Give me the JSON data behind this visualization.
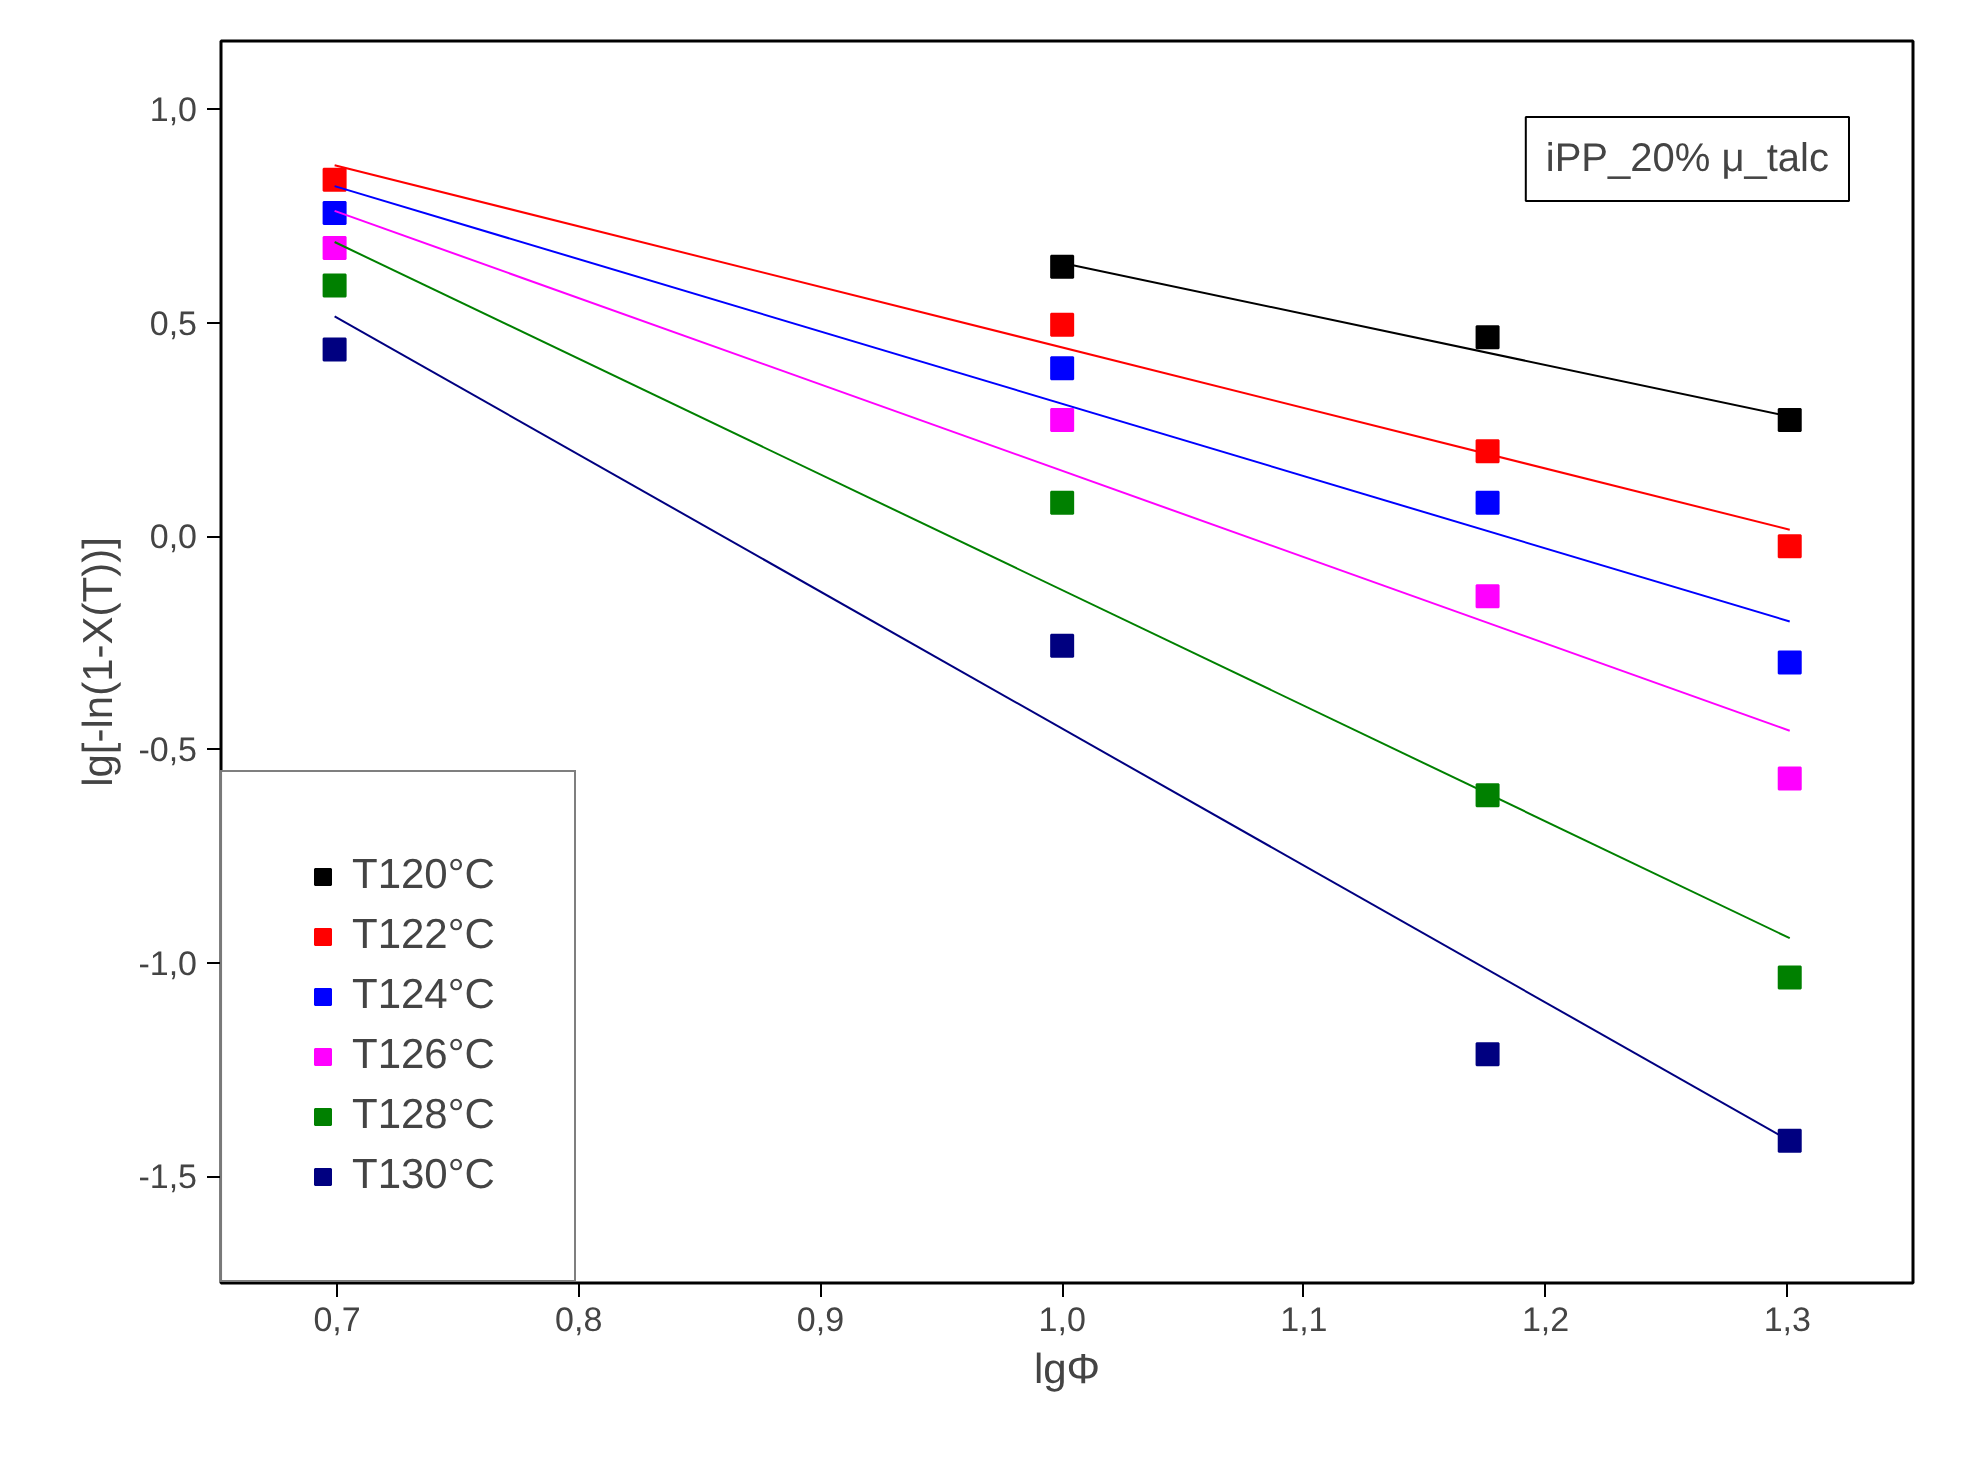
{
  "chart_data": {
    "type": "scatter",
    "xlabel": "lgΦ",
    "ylabel": "lg[-ln(1-X(T))]",
    "grid": false,
    "legend": "bottom left",
    "xlim": [
      0.652,
      1.352
    ],
    "ylim": [
      -1.75,
      1.16
    ],
    "xticks": [
      {
        "value": 0.7,
        "label": "0,7"
      },
      {
        "value": 0.8,
        "label": "0,8"
      },
      {
        "value": 0.9,
        "label": "0,9"
      },
      {
        "value": 1.0,
        "label": "1,0"
      },
      {
        "value": 1.1,
        "label": "1,1"
      },
      {
        "value": 1.2,
        "label": "1,2"
      },
      {
        "value": 1.3,
        "label": "1,3"
      }
    ],
    "yticks": [
      {
        "value": -1.5,
        "label": "-1,5"
      },
      {
        "value": -1.0,
        "label": "-1,0"
      },
      {
        "value": -0.5,
        "label": "-0,5"
      },
      {
        "value": 0.0,
        "label": "0,0"
      },
      {
        "value": 0.5,
        "label": "0,5"
      },
      {
        "value": 1.0,
        "label": "1,0"
      }
    ],
    "annotations": [
      "iPP_20% μ_talc"
    ],
    "series": [
      {
        "name": "T120°C",
        "marker": "square",
        "color": "#000000",
        "x": [
          1.0,
          1.176,
          1.301
        ],
        "values": [
          0.631,
          0.466,
          0.272
        ]
      },
      {
        "name": "T122°C",
        "marker": "square",
        "color": "#ff0000",
        "x": [
          0.699,
          1.0,
          1.176,
          1.301
        ],
        "values": [
          0.835,
          0.495,
          0.199,
          -0.024
        ]
      },
      {
        "name": "T124°C",
        "marker": "square",
        "color": "#0000ff",
        "x": [
          0.699,
          1.0,
          1.176,
          1.301
        ],
        "values": [
          0.757,
          0.393,
          0.078,
          -0.296
        ]
      },
      {
        "name": "T126°C",
        "marker": "square",
        "color": "#ff00ff",
        "x": [
          0.699,
          1.0,
          1.176,
          1.301
        ],
        "values": [
          0.675,
          0.272,
          -0.141,
          -0.568
        ]
      },
      {
        "name": "T128°C",
        "marker": "square",
        "color": "#008000",
        "x": [
          0.699,
          1.0,
          1.176,
          1.301
        ],
        "values": [
          0.587,
          0.078,
          -0.607,
          -1.034
        ]
      },
      {
        "name": "T130°C",
        "marker": "square",
        "color": "#000080",
        "x": [
          0.699,
          1.0,
          1.176,
          1.301
        ],
        "values": [
          0.437,
          -0.257,
          -1.214,
          -1.417
        ]
      },
      {
        "type": "line",
        "color": "#000000",
        "x": [
          1.0,
          1.301
        ],
        "values": [
          0.64,
          0.28
        ]
      },
      {
        "type": "line",
        "color": "#ff0000",
        "x": [
          0.699,
          1.301
        ],
        "values": [
          0.869,
          0.015
        ]
      },
      {
        "type": "line",
        "color": "#0000ff",
        "x": [
          0.699,
          1.301
        ],
        "values": [
          0.82,
          -0.2
        ]
      },
      {
        "type": "line",
        "color": "#ff00ff",
        "x": [
          0.699,
          1.301
        ],
        "values": [
          0.762,
          -0.456
        ]
      },
      {
        "type": "line",
        "color": "#008000",
        "x": [
          0.699,
          1.301
        ],
        "values": [
          0.689,
          -0.942
        ]
      },
      {
        "type": "line",
        "color": "#000080",
        "x": [
          0.699,
          1.301
        ],
        "values": [
          0.515,
          -1.417
        ]
      }
    ]
  }
}
